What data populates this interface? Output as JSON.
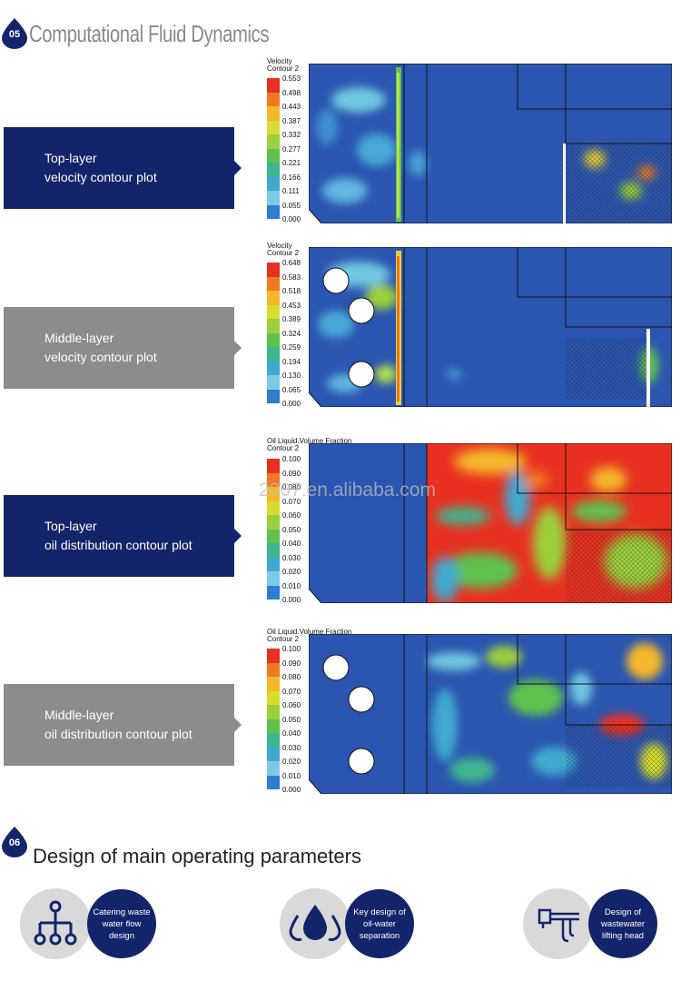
{
  "section05": {
    "number": "05",
    "title": "Computational Fluid Dynamics"
  },
  "panels": [
    {
      "label_line1": "Top-layer",
      "label_line2": "velocity contour plot",
      "legend_title1": "Velocity",
      "legend_title2": "Contour 2",
      "ticks": [
        "0.553",
        "0.498",
        "0.443",
        "0.387",
        "0.332",
        "0.277",
        "0.221",
        "0.166",
        "0.111",
        "0.055",
        "0.000"
      ]
    },
    {
      "label_line1": "Middle-layer",
      "label_line2": "velocity contour plot",
      "legend_title1": "Velocity",
      "legend_title2": "Contour 2",
      "ticks": [
        "0.648",
        "0.583",
        "0.518",
        "0.453",
        "0.389",
        "0.324",
        "0.259",
        "0.194",
        "0.130",
        "0.065",
        "0.000"
      ]
    },
    {
      "label_line1": "Top-layer",
      "label_line2": "oil distribution contour plot",
      "legend_title1": "Oil Liquid.Volume Fraction",
      "legend_title2": "Contour 2",
      "ticks": [
        "0.100",
        "0.090",
        "0.080",
        "0.070",
        "0.060",
        "0.050",
        "0.040",
        "0.030",
        "0.020",
        "0.010",
        "0.000"
      ]
    },
    {
      "label_line1": "Middle-layer",
      "label_line2": "oil distribution contour plot",
      "legend_title1": "Oil Liquid.Volume Fraction",
      "legend_title2": "Contour 2",
      "ticks": [
        "0.100",
        "0.090",
        "0.080",
        "0.070",
        "0.060",
        "0.050",
        "0.040",
        "0.030",
        "0.020",
        "0.010",
        "0.000"
      ]
    }
  ],
  "watermark": "2007.en.alibaba.com",
  "section06": {
    "number": "06",
    "title": "Design of main operating parameters"
  },
  "features": [
    {
      "text": "Catering waste water flow design",
      "icon": "flow-network-icon"
    },
    {
      "text": "Key design of oil-water separation",
      "icon": "water-drops-icon"
    },
    {
      "text": "Design of wastewater lifting head",
      "icon": "pump-pipe-icon"
    }
  ],
  "colors": {
    "navy": "#13246b",
    "grey": "#8c8c8c",
    "field_blue": "#2a55b0"
  },
  "legend_colors": [
    "#e83020",
    "#f07a22",
    "#f4b829",
    "#d8dd2d",
    "#9bd03a",
    "#5fc24e",
    "#3fb58f",
    "#41a9d0",
    "#7fc9e8",
    "#2d7dd0",
    "#1f3fa8"
  ]
}
